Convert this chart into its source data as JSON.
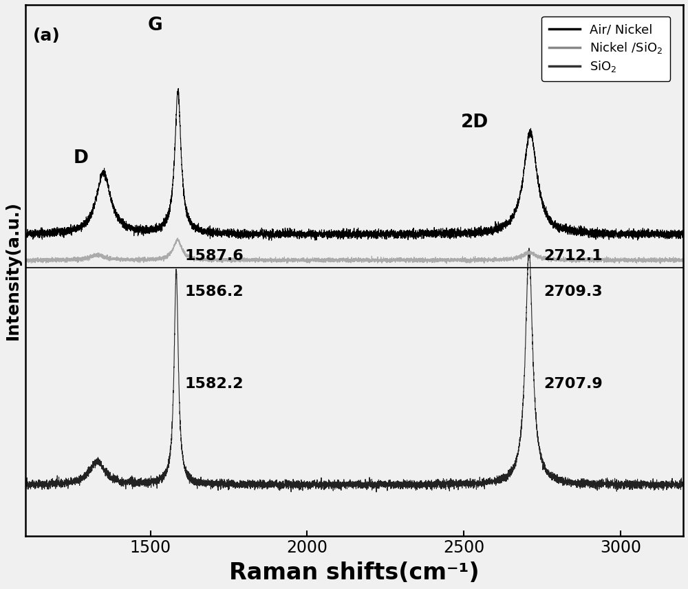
{
  "title": "",
  "xlabel": "Raman shifts(cm⁻¹)",
  "ylabel": "Intensity(a.u.)",
  "xmin": 1100,
  "xmax": 3200,
  "legend_labels": [
    "Air/ Nickel",
    "Nickel /SiO₂",
    "SiO₂"
  ],
  "legend_colors": [
    "#000000",
    "#888888",
    "#333333"
  ],
  "curve1_color": "#000000",
  "curve2_color": "#aaaaaa",
  "curve3_color": "#222222",
  "annotation_D": "D",
  "annotation_G": "G",
  "annotation_2D": "2D",
  "annotation_1587": "1587.6",
  "annotation_2712": "2712.1",
  "annotation_1586": "1586.2",
  "annotation_2709": "2709.3",
  "annotation_1582": "1582.2",
  "annotation_2707": "2707.9",
  "panel_label": "(a)",
  "background_color": "#f0f0f0",
  "noise_level_high": 0.004,
  "noise_level_low": 0.002
}
